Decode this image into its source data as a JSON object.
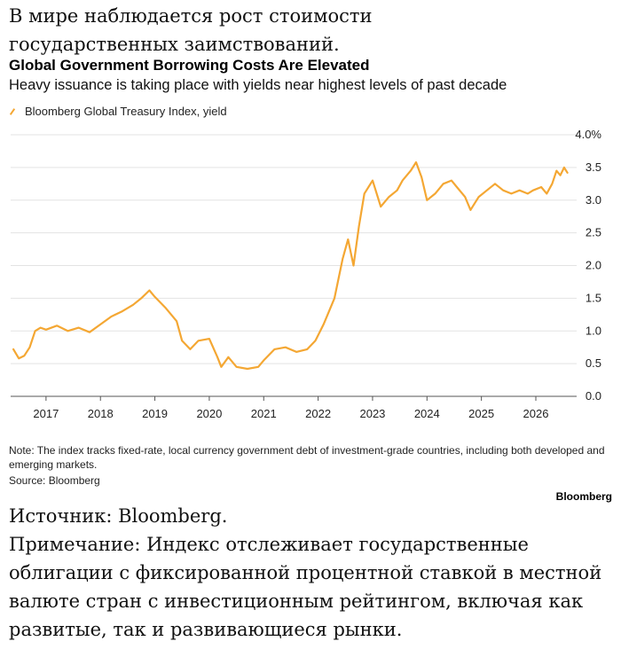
{
  "article": {
    "intro": "В мире наблюдается рост стоимости государственных заимствований.",
    "source_line": "Источник: Bloomberg.",
    "note_line": "Примечание: Индекс отслеживает государственные облигации с фиксированной процентной ставкой в местной валюте стран с инвестиционным рейтингом, включая как развитые, так и развивающиеся рынки."
  },
  "chart_data": {
    "type": "line",
    "title": "Global Government Borrowing Costs Are Elevated",
    "subtitle": "Heavy issuance is taking place with yields near highest levels of past decade",
    "legend_position": "top-left",
    "series": [
      {
        "name": "Bloomberg Global Treasury Index, yield",
        "color": "#f4a733",
        "points": [
          [
            2016.4,
            0.72
          ],
          [
            2016.5,
            0.58
          ],
          [
            2016.6,
            0.62
          ],
          [
            2016.7,
            0.75
          ],
          [
            2016.8,
            1.0
          ],
          [
            2016.9,
            1.05
          ],
          [
            2017.0,
            1.02
          ],
          [
            2017.2,
            1.08
          ],
          [
            2017.4,
            1.0
          ],
          [
            2017.6,
            1.05
          ],
          [
            2017.8,
            0.98
          ],
          [
            2018.0,
            1.1
          ],
          [
            2018.2,
            1.22
          ],
          [
            2018.4,
            1.3
          ],
          [
            2018.6,
            1.4
          ],
          [
            2018.75,
            1.5
          ],
          [
            2018.9,
            1.62
          ],
          [
            2019.0,
            1.52
          ],
          [
            2019.2,
            1.35
          ],
          [
            2019.4,
            1.15
          ],
          [
            2019.5,
            0.85
          ],
          [
            2019.65,
            0.72
          ],
          [
            2019.8,
            0.85
          ],
          [
            2020.0,
            0.88
          ],
          [
            2020.15,
            0.6
          ],
          [
            2020.22,
            0.45
          ],
          [
            2020.35,
            0.6
          ],
          [
            2020.5,
            0.45
          ],
          [
            2020.7,
            0.42
          ],
          [
            2020.9,
            0.45
          ],
          [
            2021.0,
            0.55
          ],
          [
            2021.2,
            0.72
          ],
          [
            2021.4,
            0.75
          ],
          [
            2021.6,
            0.68
          ],
          [
            2021.8,
            0.72
          ],
          [
            2021.95,
            0.85
          ],
          [
            2022.1,
            1.1
          ],
          [
            2022.3,
            1.5
          ],
          [
            2022.45,
            2.1
          ],
          [
            2022.55,
            2.4
          ],
          [
            2022.65,
            2.0
          ],
          [
            2022.75,
            2.6
          ],
          [
            2022.85,
            3.1
          ],
          [
            2023.0,
            3.3
          ],
          [
            2023.15,
            2.9
          ],
          [
            2023.3,
            3.05
          ],
          [
            2023.45,
            3.15
          ],
          [
            2023.55,
            3.3
          ],
          [
            2023.7,
            3.45
          ],
          [
            2023.8,
            3.58
          ],
          [
            2023.9,
            3.35
          ],
          [
            2024.0,
            3.0
          ],
          [
            2024.15,
            3.1
          ],
          [
            2024.3,
            3.25
          ],
          [
            2024.45,
            3.3
          ],
          [
            2024.55,
            3.2
          ],
          [
            2024.7,
            3.05
          ],
          [
            2024.8,
            2.85
          ],
          [
            2024.95,
            3.05
          ],
          [
            2025.1,
            3.15
          ],
          [
            2025.25,
            3.25
          ],
          [
            2025.4,
            3.15
          ],
          [
            2025.55,
            3.1
          ],
          [
            2025.7,
            3.15
          ],
          [
            2025.85,
            3.1
          ],
          [
            2025.95,
            3.15
          ],
          [
            2026.1,
            3.2
          ],
          [
            2026.2,
            3.1
          ],
          [
            2026.3,
            3.25
          ],
          [
            2026.38,
            3.45
          ],
          [
            2026.45,
            3.38
          ],
          [
            2026.52,
            3.5
          ],
          [
            2026.58,
            3.42
          ]
        ]
      }
    ],
    "x_range": [
      2016.35,
      2026.75
    ],
    "x_ticks": [
      "2017",
      "2018",
      "2019",
      "2020",
      "2021",
      "2022",
      "2023",
      "2024",
      "2025",
      "2026"
    ],
    "x_tick_values": [
      2017,
      2018,
      2019,
      2020,
      2021,
      2022,
      2023,
      2024,
      2025,
      2026
    ],
    "ylim": [
      0,
      4
    ],
    "y_ticks": [
      "4.0%",
      "3.5",
      "3.0",
      "2.5",
      "2.0",
      "1.5",
      "1.0",
      "0.5",
      "0.0"
    ],
    "y_tick_values": [
      4.0,
      3.5,
      3.0,
      2.5,
      2.0,
      1.5,
      1.0,
      0.5,
      0.0
    ],
    "grid": "horizontal",
    "note": "Note: The index tracks fixed-rate, local currency government debt of investment-grade countries, including both developed and emerging markets.",
    "source": "Source: Bloomberg",
    "brand": "Bloomberg"
  }
}
